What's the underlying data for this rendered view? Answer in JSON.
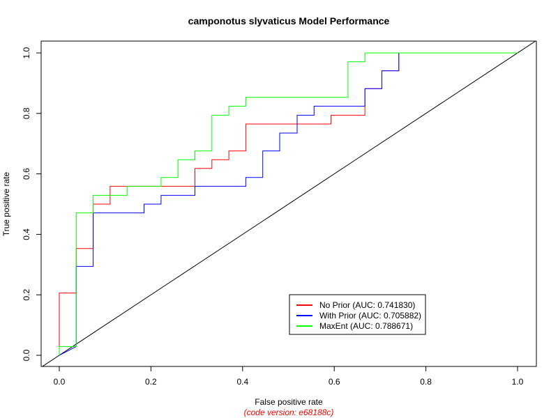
{
  "chart_data": {
    "type": "line",
    "title": "camponotus slyvaticus Model Performance",
    "xlabel": "False positive rate",
    "ylabel": "True positive rate",
    "footnote": "(code version: e68188c)",
    "footnote_color": "#ff0000",
    "xlim": [
      0.0,
      1.0
    ],
    "ylim": [
      0.0,
      1.0
    ],
    "x_ticks": [
      "0.0",
      "0.2",
      "0.4",
      "0.6",
      "0.8",
      "1.0"
    ],
    "y_ticks": [
      "0.0",
      "0.2",
      "0.4",
      "0.6",
      "0.8",
      "1.0"
    ],
    "grid": false,
    "legend_position": "bottom-right",
    "reference_line": {
      "from": [
        0.0,
        0.0
      ],
      "to": [
        1.0,
        1.0
      ],
      "color": "#000000"
    },
    "series": [
      {
        "name": "No Prior (AUC: 0.741830)",
        "color": "#ff0000",
        "x": [
          0.0,
          0.0,
          0.037,
          0.037,
          0.074,
          0.074,
          0.111,
          0.111,
          0.296,
          0.296,
          0.333,
          0.333,
          0.37,
          0.37,
          0.407,
          0.407,
          0.593,
          0.593,
          0.667,
          0.667,
          0.704,
          0.704,
          0.741,
          0.741,
          1.0
        ],
        "y": [
          0.0,
          0.206,
          0.206,
          0.353,
          0.353,
          0.5,
          0.5,
          0.559,
          0.559,
          0.618,
          0.618,
          0.647,
          0.647,
          0.676,
          0.676,
          0.765,
          0.765,
          0.794,
          0.794,
          0.882,
          0.882,
          0.941,
          0.941,
          1.0,
          1.0
        ]
      },
      {
        "name": "With Prior (AUC: 0.705882)",
        "color": "#0000ff",
        "x": [
          0.0,
          0.037,
          0.037,
          0.074,
          0.074,
          0.185,
          0.185,
          0.222,
          0.222,
          0.296,
          0.296,
          0.407,
          0.407,
          0.444,
          0.444,
          0.481,
          0.481,
          0.519,
          0.519,
          0.556,
          0.556,
          0.667,
          0.667,
          0.704,
          0.704,
          0.741,
          0.741,
          1.0
        ],
        "y": [
          0.0,
          0.029,
          0.294,
          0.294,
          0.471,
          0.471,
          0.5,
          0.5,
          0.529,
          0.529,
          0.559,
          0.559,
          0.588,
          0.588,
          0.676,
          0.676,
          0.735,
          0.735,
          0.794,
          0.794,
          0.824,
          0.824,
          0.882,
          0.882,
          0.941,
          0.941,
          1.0,
          1.0
        ]
      },
      {
        "name": "MaxEnt (AUC: 0.788671)",
        "color": "#00ff00",
        "x": [
          0.0,
          0.0,
          0.037,
          0.037,
          0.074,
          0.074,
          0.148,
          0.148,
          0.222,
          0.222,
          0.259,
          0.259,
          0.296,
          0.296,
          0.333,
          0.333,
          0.37,
          0.37,
          0.407,
          0.407,
          0.63,
          0.63,
          0.667,
          0.667,
          1.0
        ],
        "y": [
          0.0,
          0.029,
          0.029,
          0.471,
          0.471,
          0.529,
          0.529,
          0.559,
          0.559,
          0.588,
          0.588,
          0.647,
          0.647,
          0.676,
          0.676,
          0.794,
          0.794,
          0.824,
          0.824,
          0.853,
          0.853,
          0.971,
          0.971,
          1.0,
          1.0
        ]
      }
    ]
  }
}
